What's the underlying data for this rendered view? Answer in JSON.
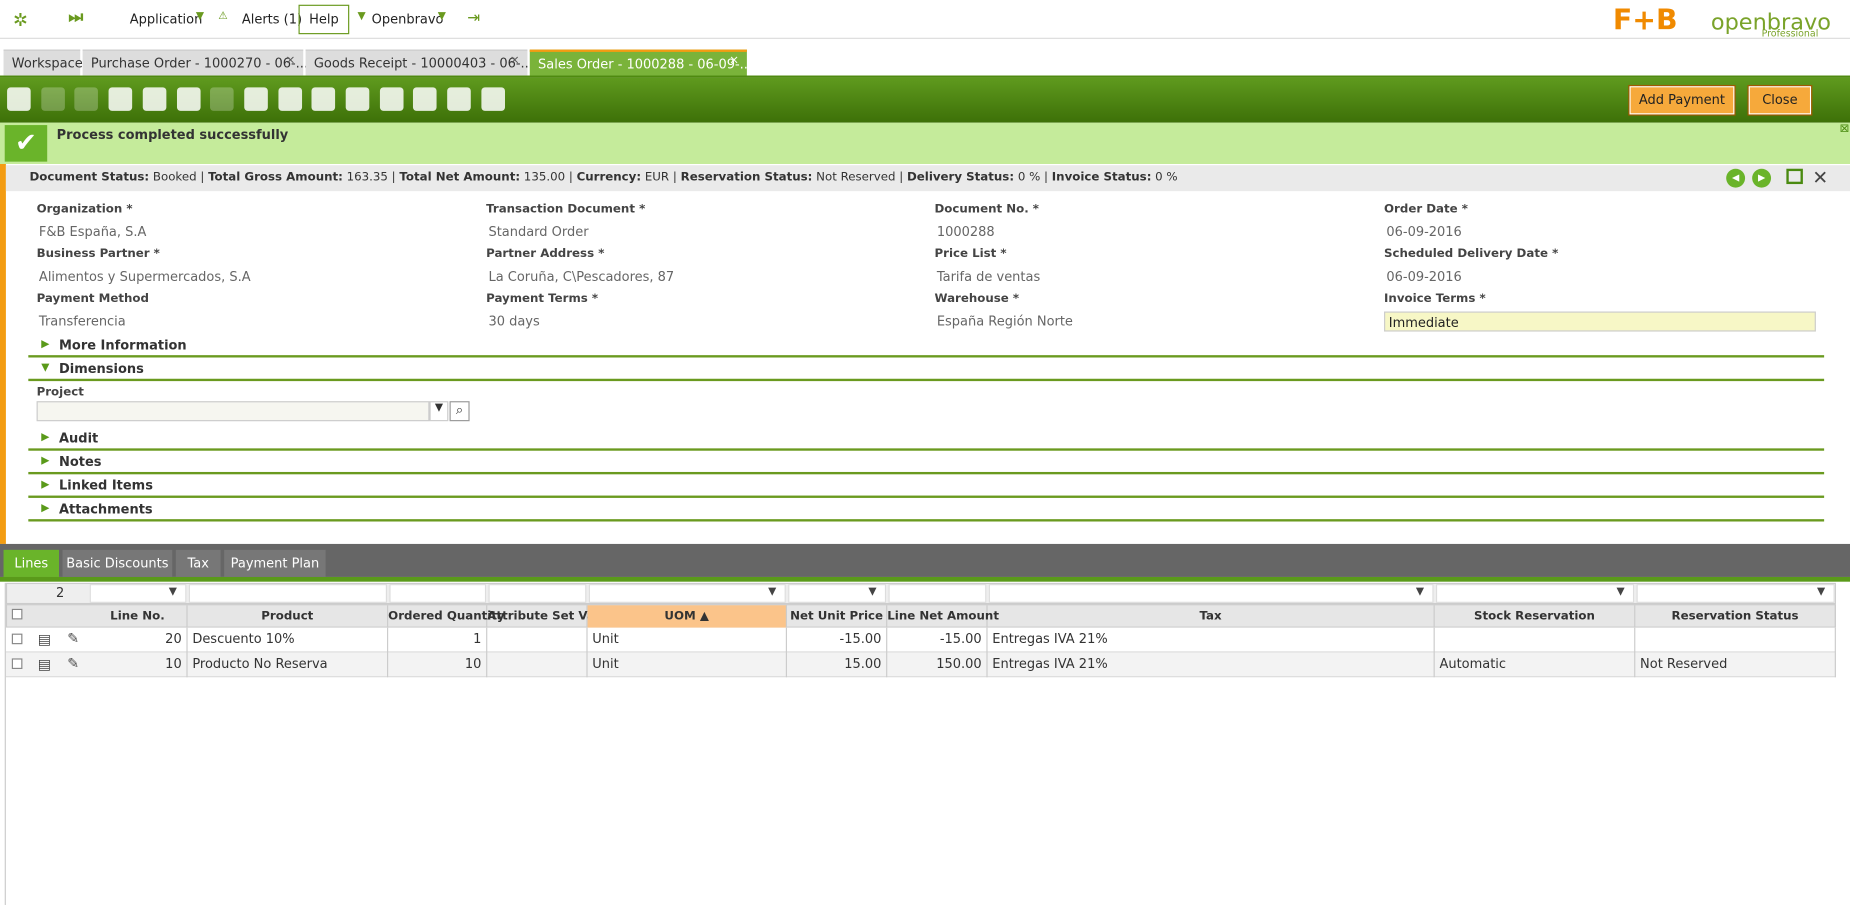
{
  "topbar": {
    "menus": [
      "Application",
      "Alerts (1)",
      "Help",
      "Openbravo"
    ],
    "logo": "openbravo",
    "logo_sub": "Professional"
  },
  "tabs": [
    "Workspace",
    "Purchase Order - 1000270 - 06-...",
    "Goods Receipt - 10000403 - 06-...",
    "Sales Order - 1000288 - 06-09-..."
  ],
  "toolbar": {
    "buttons": [
      "Add Payment",
      "Close"
    ]
  },
  "message": "Process completed successfully",
  "status": [
    [
      "Document Status:",
      "Booked"
    ],
    [
      "Total Gross Amount:",
      "163.35"
    ],
    [
      "Total Net Amount:",
      "135.00"
    ],
    [
      "Currency:",
      "EUR"
    ],
    [
      "Reservation Status:",
      "Not Reserved"
    ],
    [
      "Delivery Status:",
      "0 %"
    ],
    [
      "Invoice Status:",
      "0 %"
    ]
  ],
  "fields": [
    [
      "Organization *",
      "F&B España, S.A"
    ],
    [
      "Transaction Document *",
      "Standard Order"
    ],
    [
      "Document No. *",
      "1000288"
    ],
    [
      "Order Date *",
      "06-09-2016"
    ],
    [
      "Business Partner *",
      "Alimentos y Supermercados, S.A"
    ],
    [
      "Partner Address *",
      "La Coruña, C\\Pescadores, 87"
    ],
    [
      "Price List *",
      "Tarifa de ventas"
    ],
    [
      "Scheduled Delivery Date *",
      "06-09-2016"
    ],
    [
      "Payment Method",
      "Transferencia"
    ],
    [
      "Payment Terms *",
      "30 days"
    ],
    [
      "Warehouse *",
      "España Región Norte"
    ],
    [
      "Invoice Terms *",
      "Immediate"
    ]
  ],
  "sections": [
    "More Information",
    "Dimensions",
    "Audit",
    "Notes",
    "Linked Items",
    "Attachments"
  ],
  "project_label": "Project",
  "subtabs": [
    "Lines",
    "Basic Discounts",
    "Tax",
    "Payment Plan"
  ],
  "grid": {
    "count": "2",
    "columns": [
      "Line No.",
      "Product",
      "Ordered Quantity",
      "Attribute Set Value",
      "UOM ▲",
      "Net Unit Price",
      "Line Net Amount",
      "Tax",
      "Stock Reservation",
      "Reservation Status"
    ],
    "rows": [
      [
        "20",
        "Descuento 10%",
        "1",
        "",
        "Unit",
        "-15.00",
        "-15.00",
        "Entregas IVA 21%",
        "",
        ""
      ],
      [
        "10",
        "Producto No Reserva",
        "10",
        "",
        "Unit",
        "15.00",
        "150.00",
        "Entregas IVA 21%",
        "Automatic",
        "Not Reserved"
      ]
    ]
  }
}
